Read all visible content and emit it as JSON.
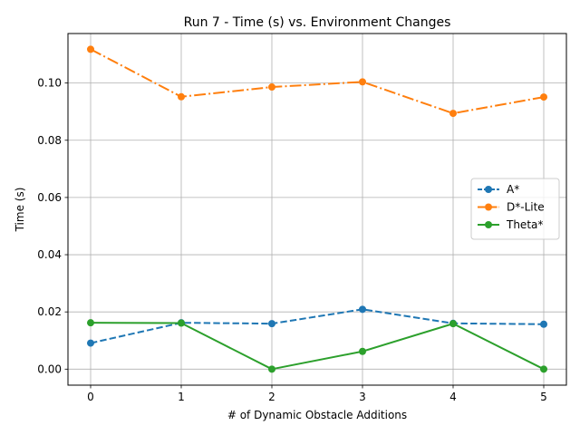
{
  "chart_data": {
    "type": "line",
    "title": "Run 7 - Time (s) vs. Environment Changes",
    "xlabel": "# of Dynamic Obstacle Additions",
    "ylabel": "Time (s)",
    "x": [
      0,
      1,
      2,
      3,
      4,
      5
    ],
    "xticks": [
      "0",
      "1",
      "2",
      "3",
      "4",
      "5"
    ],
    "xlim": [
      -0.25,
      5.25
    ],
    "ylim": [
      -0.0056,
      0.1173
    ],
    "yticks": [
      "0.00",
      "0.02",
      "0.04",
      "0.06",
      "0.08",
      "0.10"
    ],
    "yticks_values": [
      0.0,
      0.02,
      0.04,
      0.06,
      0.08,
      0.1
    ],
    "grid": true,
    "legend_position": "center-right",
    "series": [
      {
        "name": "A*",
        "values": [
          0.0091,
          0.0162,
          0.0159,
          0.0209,
          0.016,
          0.0157
        ],
        "color": "#1f77b4",
        "dash": "dashed"
      },
      {
        "name": "D*-Lite",
        "values": [
          0.1118,
          0.0952,
          0.0986,
          0.1004,
          0.0894,
          0.0951
        ],
        "color": "#ff7f0e",
        "dash": "dashdot"
      },
      {
        "name": "Theta*",
        "values": [
          0.0162,
          0.0161,
          0.0,
          0.0062,
          0.0159,
          0.0
        ],
        "color": "#2ca02c",
        "dash": "solid"
      }
    ]
  }
}
